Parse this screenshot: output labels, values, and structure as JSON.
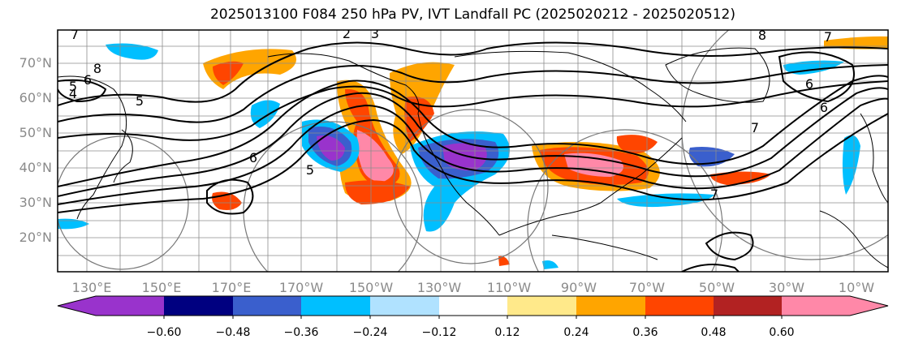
{
  "title": "2025013100 F084 250 hPa PV, IVT Landfall PC (2025020212 - 2025020512)",
  "lat_labels": [
    "70°N",
    "60°N",
    "50°N",
    "40°N",
    "30°N",
    "20°N"
  ],
  "lon_labels": [
    "130°E",
    "150°E",
    "170°E",
    "170°W",
    "150°W",
    "130°W",
    "110°W",
    "90°W",
    "70°W",
    "50°W",
    "30°W",
    "10°W"
  ],
  "contour_labels": [
    "7",
    "8",
    "6",
    "5",
    "4",
    "5",
    "6",
    "5",
    "2",
    "3",
    "8",
    "7",
    "6",
    "6",
    "7",
    "7"
  ],
  "colorbar": {
    "ticks": [
      "−0.60",
      "−0.48",
      "−0.36",
      "−0.24",
      "−0.12",
      "0.12",
      "0.24",
      "0.36",
      "0.48",
      "0.60"
    ],
    "colors": [
      "#9933cc",
      "#000080",
      "#3a5fcd",
      "#00bfff",
      "#b0e2ff",
      "#ffffff",
      "#ffe98a",
      "#ffa500",
      "#ff4500",
      "#b22222",
      "#ff88a8"
    ]
  }
}
